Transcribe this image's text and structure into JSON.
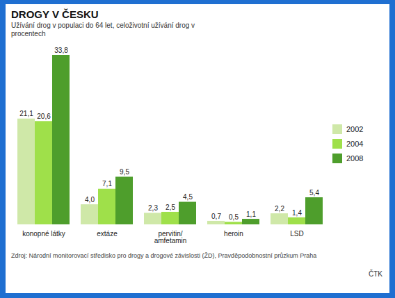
{
  "chart_data": {
    "type": "bar",
    "title": "DROGY V ČESKU",
    "subtitle": "Užívání drog v populaci do 64 let, celoživotní užívání drog v procentech",
    "source": "Zdroj: Národní monitorovací středisko pro drogy a drogové závislosti (ŽD), Pravděpodobnostní průzkum Praha",
    "note": "ČTK",
    "categories": [
      "konopné látky",
      "extáze",
      "pervitin/ amfetamin",
      "heroin",
      "LSD"
    ],
    "series": [
      {
        "name": "2002",
        "color": "#cfe8a8",
        "values": [
          21.1,
          4.0,
          2.3,
          0.7,
          2.2
        ],
        "value_labels": [
          "21,1",
          "4,0",
          "2,3",
          "0,7",
          "2,2"
        ]
      },
      {
        "name": "2004",
        "color": "#9fe04a",
        "values": [
          20.6,
          7.1,
          2.5,
          0.5,
          1.4
        ],
        "value_labels": [
          "20,6",
          "7,1",
          "2,5",
          "0,5",
          "1,4"
        ]
      },
      {
        "name": "2008",
        "color": "#4e9e2c",
        "values": [
          33.8,
          9.5,
          4.5,
          1.1,
          5.4
        ],
        "value_labels": [
          "33,8",
          "9,5",
          "4,5",
          "1,1",
          "5,4"
        ]
      }
    ],
    "data_labels": true,
    "legend": "right",
    "tick_labels": "x"
  }
}
